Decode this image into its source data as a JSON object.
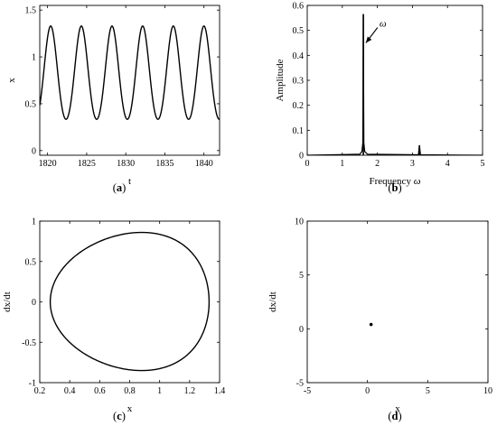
{
  "chart_data": [
    {
      "id": "a",
      "type": "line",
      "caption_open": "(",
      "caption_letter": "a",
      "caption_close": ")",
      "xlabel": "t",
      "ylabel": "x",
      "xlim": [
        1819,
        1842
      ],
      "ylim": [
        -0.05,
        1.55
      ],
      "xticks": [
        1820,
        1825,
        1830,
        1835,
        1840
      ],
      "yticks": [
        0,
        0.5,
        1,
        1.5
      ],
      "series": [
        {
          "period": 3.92,
          "min": 0.27,
          "max": 1.33,
          "first_peak_t": 1820.4,
          "peak_times": [
            1820.4,
            1824.3,
            1828.2,
            1832.1,
            1836.0,
            1840.0
          ]
        }
      ]
    },
    {
      "id": "b",
      "type": "line",
      "caption_open": "(",
      "caption_letter": "b",
      "caption_close": ")",
      "xlabel": "Frequency",
      "xlabel_symbol": "ω",
      "ylabel": "Amplitude",
      "xlim": [
        0,
        5
      ],
      "ylim": [
        0,
        0.6
      ],
      "xticks": [
        0,
        1,
        2,
        3,
        4,
        5
      ],
      "yticks": [
        0,
        0.1,
        0.2,
        0.3,
        0.4,
        0.5,
        0.6
      ],
      "peaks": [
        {
          "x": 1.6,
          "y": 0.565
        },
        {
          "x": 3.2,
          "y": 0.04
        }
      ],
      "annotations": [
        {
          "text": "ω",
          "target": [
            1.62,
            0.45
          ]
        }
      ]
    },
    {
      "id": "c",
      "type": "line",
      "caption_open": "(",
      "caption_letter": "c",
      "caption_close": ")",
      "xlabel": "x",
      "ylabel": "dx/dt",
      "xlim": [
        0.2,
        1.4
      ],
      "ylim": [
        -1,
        1
      ],
      "xticks": [
        0.2,
        0.4,
        0.6,
        0.8,
        1,
        1.2,
        1.4
      ],
      "yticks": [
        -1,
        -0.5,
        0,
        0.5,
        1
      ],
      "orbit": {
        "x_min": 0.27,
        "x_max": 1.33,
        "y_min": -0.85,
        "y_max": 0.86,
        "x_at_extreme_y": 0.88
      }
    },
    {
      "id": "d",
      "type": "scatter",
      "caption_open": "(",
      "caption_letter": "d",
      "caption_close": ")",
      "xlabel": "x",
      "ylabel": "dx/dt",
      "xlim": [
        -5,
        10
      ],
      "ylim": [
        -5,
        10
      ],
      "xticks": [
        -5,
        0,
        5,
        10
      ],
      "yticks": [
        -5,
        0,
        5,
        10
      ],
      "points": [
        {
          "x": 0.3,
          "y": 0.4
        }
      ]
    }
  ]
}
